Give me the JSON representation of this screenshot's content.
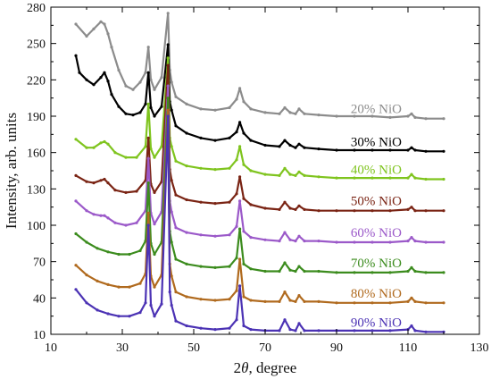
{
  "chart_data": {
    "type": "line",
    "title": "",
    "xlabel_prefix": "2",
    "xlabel_theta": "θ",
    "xlabel_suffix": ", degree",
    "ylabel": "Intensity, arb. units",
    "xlim": [
      10,
      130
    ],
    "ylim": [
      10,
      280
    ],
    "xticks": [
      10,
      30,
      50,
      70,
      90,
      110,
      130
    ],
    "yticks": [
      10,
      40,
      70,
      100,
      130,
      160,
      190,
      220,
      250,
      280
    ],
    "grid": false,
    "legend": "none",
    "series": [
      {
        "name": "20% NiO",
        "color": "#8c8c8c",
        "x": [
          17,
          20,
          22,
          24,
          25,
          26,
          27,
          29,
          31,
          33,
          35,
          36.5,
          37.3,
          38,
          39,
          41,
          42.8,
          43.3,
          43.8,
          45,
          48,
          52,
          56,
          60,
          62,
          62.9,
          64,
          66,
          70,
          74,
          75.5,
          77,
          78.5,
          79.5,
          81,
          85,
          90,
          95,
          100,
          105,
          110,
          111,
          112,
          115,
          120
        ],
        "y": [
          266,
          256,
          262,
          268,
          266,
          258,
          247,
          228,
          215,
          212,
          218,
          226,
          247,
          220,
          212,
          222,
          275,
          228,
          218,
          206,
          200,
          196,
          195,
          197,
          204,
          213,
          202,
          196,
          193,
          192,
          197,
          193,
          192,
          196,
          192,
          191,
          190,
          190,
          190,
          189,
          190,
          192,
          189,
          188,
          188
        ]
      },
      {
        "name": "30% NiO",
        "color": "#000000",
        "x": [
          17,
          18,
          20,
          22,
          24,
          25,
          26,
          27,
          29,
          31,
          33,
          35,
          36.5,
          37.3,
          38,
          39,
          41,
          42.8,
          43.3,
          43.8,
          45,
          48,
          52,
          56,
          60,
          62,
          62.9,
          64,
          66,
          70,
          74,
          75.5,
          77,
          78.5,
          79.5,
          81,
          85,
          90,
          95,
          100,
          105,
          110,
          111,
          112,
          115,
          120
        ],
        "y": [
          240,
          226,
          220,
          216,
          222,
          226,
          219,
          208,
          198,
          192,
          191,
          193,
          200,
          226,
          197,
          190,
          198,
          249,
          202,
          195,
          182,
          176,
          172,
          170,
          172,
          177,
          185,
          176,
          170,
          166,
          165,
          170,
          166,
          164,
          167,
          164,
          163,
          162,
          162,
          162,
          162,
          162,
          164,
          162,
          161,
          161
        ]
      },
      {
        "name": "40% NiO",
        "color": "#7fc41e",
        "x": [
          17,
          20,
          22,
          24,
          25,
          26,
          28,
          31,
          34,
          36.5,
          37.3,
          38,
          39,
          41,
          42.8,
          43.3,
          43.8,
          45,
          48,
          52,
          56,
          60,
          62,
          62.9,
          64,
          66,
          70,
          74,
          75.5,
          77,
          78.5,
          79.5,
          81,
          85,
          90,
          95,
          100,
          105,
          110,
          111,
          112,
          115,
          120
        ],
        "y": [
          171,
          164,
          164,
          168,
          169,
          167,
          160,
          156,
          156,
          165,
          200,
          163,
          156,
          165,
          238,
          172,
          165,
          153,
          149,
          147,
          146,
          147,
          154,
          165,
          150,
          145,
          142,
          141,
          147,
          142,
          141,
          144,
          141,
          140,
          139,
          139,
          139,
          139,
          139,
          142,
          139,
          138,
          138
        ]
      },
      {
        "name": "50% NiO",
        "color": "#7a2414",
        "x": [
          17,
          20,
          22,
          24,
          25,
          26,
          28,
          31,
          34,
          36.5,
          37.3,
          38,
          39,
          41,
          42.8,
          43.3,
          43.8,
          45,
          48,
          52,
          56,
          60,
          62,
          62.9,
          64,
          66,
          70,
          74,
          75.5,
          77,
          78.5,
          79.5,
          81,
          85,
          90,
          95,
          100,
          105,
          110,
          111,
          112,
          115,
          120
        ],
        "y": [
          141,
          136,
          135,
          137,
          138,
          135,
          129,
          127,
          128,
          137,
          172,
          134,
          127,
          136,
          232,
          146,
          137,
          125,
          121,
          119,
          118,
          119,
          126,
          140,
          122,
          117,
          114,
          113,
          119,
          114,
          113,
          116,
          113,
          112,
          112,
          112,
          112,
          112,
          113,
          115,
          112,
          112,
          112
        ]
      },
      {
        "name": "60% NiO",
        "color": "#9b59c9",
        "x": [
          17,
          20,
          22,
          24,
          25,
          26,
          28,
          31,
          34,
          36.5,
          37.3,
          38,
          39,
          41,
          42.8,
          43.3,
          43.8,
          45,
          48,
          52,
          56,
          60,
          62,
          62.9,
          64,
          66,
          70,
          74,
          75.5,
          77,
          78.5,
          79.5,
          81,
          85,
          90,
          95,
          100,
          105,
          110,
          111,
          112,
          115,
          120
        ],
        "y": [
          120,
          112,
          109,
          108,
          108,
          106,
          102,
          100,
          102,
          112,
          155,
          110,
          101,
          111,
          215,
          120,
          111,
          98,
          94,
          92,
          91,
          92,
          99,
          120,
          95,
          90,
          88,
          87,
          94,
          88,
          87,
          91,
          87,
          87,
          86,
          86,
          86,
          86,
          87,
          90,
          87,
          86,
          86
        ]
      },
      {
        "name": "70% NiO",
        "color": "#3c8c1e",
        "x": [
          17,
          20,
          23,
          26,
          29,
          32,
          35,
          36.5,
          37.3,
          38,
          39,
          41,
          42.8,
          43.3,
          43.8,
          45,
          48,
          52,
          56,
          60,
          62,
          62.9,
          64,
          66,
          70,
          74,
          75.5,
          77,
          78.5,
          79.5,
          81,
          85,
          90,
          95,
          100,
          105,
          110,
          111,
          112,
          115,
          120
        ],
        "y": [
          93,
          86,
          81,
          78,
          76,
          76,
          79,
          87,
          135,
          85,
          76,
          86,
          205,
          95,
          86,
          72,
          68,
          66,
          65,
          66,
          73,
          97,
          68,
          64,
          62,
          62,
          69,
          63,
          62,
          66,
          62,
          62,
          61,
          61,
          61,
          61,
          62,
          65,
          62,
          61,
          61
        ]
      },
      {
        "name": "80% NiO",
        "color": "#b06a1e",
        "x": [
          17,
          20,
          23,
          26,
          29,
          32,
          35,
          36.5,
          37.3,
          38,
          39,
          41,
          42.8,
          43.3,
          43.8,
          45,
          48,
          52,
          56,
          60,
          62,
          62.9,
          64,
          66,
          70,
          74,
          75.5,
          77,
          78.5,
          79.5,
          81,
          85,
          90,
          95,
          100,
          105,
          110,
          111,
          112,
          115,
          120
        ],
        "y": [
          67,
          59,
          54,
          51,
          49,
          49,
          52,
          60,
          110,
          58,
          49,
          59,
          195,
          68,
          58,
          45,
          41,
          39,
          38,
          39,
          46,
          72,
          41,
          38,
          37,
          37,
          45,
          38,
          37,
          42,
          37,
          37,
          36,
          36,
          36,
          36,
          37,
          40,
          37,
          36,
          36
        ]
      },
      {
        "name": "90% NiO",
        "color": "#4b32b4",
        "x": [
          17,
          20,
          23,
          26,
          29,
          32,
          35,
          36.5,
          37.3,
          38,
          39,
          41,
          42.8,
          43.3,
          43.8,
          45,
          48,
          52,
          56,
          60,
          62,
          62.9,
          64,
          66,
          70,
          74,
          75.5,
          77,
          78.5,
          79.5,
          81,
          85,
          90,
          95,
          100,
          105,
          110,
          111,
          112,
          115,
          120
        ],
        "y": [
          47,
          36,
          30,
          27,
          25,
          25,
          28,
          36,
          100,
          34,
          25,
          35,
          190,
          45,
          34,
          21,
          17,
          15,
          14,
          15,
          22,
          50,
          17,
          14,
          13,
          13,
          22,
          14,
          13,
          19,
          13,
          13,
          13,
          13,
          13,
          13,
          14,
          17,
          13,
          12,
          12
        ]
      }
    ]
  }
}
